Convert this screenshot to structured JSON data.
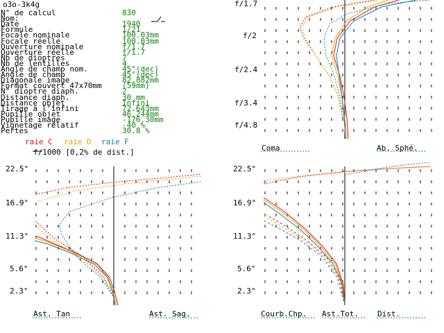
{
  "lens_code": "o3o-3k4g",
  "params": [
    {
      "label": "N° de calcul",
      "value": "830"
    },
    {
      "label": "Nom:",
      "value": ""
    },
    {
      "label": "Date",
      "value": "1940"
    },
    {
      "label": "Formule",
      "value": "1/21"
    },
    {
      "label": "Focale nominale",
      "value": "100.03mm"
    },
    {
      "label": "Focale réelle",
      "value": "100.03mm"
    },
    {
      "label": "Ouverture nominale",
      "value": "f/1.7"
    },
    {
      "label": "Ouverture réelle",
      "value": "f/1.7"
    },
    {
      "label": "Nb de dioptres",
      "value": "7"
    },
    {
      "label": "Nb de lentilles",
      "value": "4"
    },
    {
      "label": "Angle de champ nom.",
      "value": "45°(dec)"
    },
    {
      "label": "Angle de champ",
      "value": "45°(dec)"
    },
    {
      "label": "Diagonale image",
      "value": "82.882mm"
    },
    {
      "label": "Format couvert 47x70mm",
      "value": "(59mm)"
    },
    {
      "label": "N° dioptre diaph.",
      "value": "2"
    },
    {
      "label": "Distance diaph.",
      "value": "30     mm"
    },
    {
      "label": "Distance objet",
      "value": "Infini"
    },
    {
      "label": "Tirage à l'infini",
      "value": "72.643mm"
    },
    {
      "label": "Pupille objet",
      "value": "46.244mm"
    },
    {
      "label": "Pupille image",
      "value": "-176.30mm"
    },
    {
      "label": "Vignetage relatif",
      "value": "-40 %"
    },
    {
      "label": "Pertes",
      "value": "30.8 %"
    }
  ],
  "legend": {
    "raie_c": "raie C",
    "raie_d": "raie D",
    "raie_f": "raie F",
    "scale": "f/1000 [0,2% de dist.]"
  },
  "colors": {
    "c": "#e01010",
    "d": "#f0a000",
    "f": "#1080a0",
    "text_value": "#108010"
  },
  "coma_plot": {
    "y_labels": [
      "f/1.7",
      "f/2",
      "f/2.4",
      "f/3.4",
      "f/4.8"
    ],
    "bottom_left": "Coma",
    "bottom_right": "Ab. Sphé."
  },
  "ast_plot": {
    "y_labels": [
      "22.5°",
      "16.9°",
      "11.3°",
      "5.6°",
      "2.3°"
    ],
    "bottom_left": "Ast. Tan",
    "bottom_right": "Ast. Sag."
  },
  "curv_plot": {
    "y_labels": [
      "22.5°",
      "16.9°",
      "11.3°",
      "5.6°",
      "2.3°"
    ],
    "bottom_a": "Courb.Chp.",
    "bottom_b": "Ast.Tot.",
    "bottom_c": "Dist."
  },
  "chart_data": [
    {
      "type": "line",
      "title": "",
      "xlabel": "Ab. Sphé.",
      "ylabel": "",
      "y_ticks": [
        "f/1.7",
        "f/2",
        "f/2.4",
        "f/3.4",
        "f/4.8"
      ],
      "series": [
        {
          "name": "raie C"
        },
        {
          "name": "raie D"
        },
        {
          "name": "raie F"
        }
      ]
    },
    {
      "type": "line",
      "title": "",
      "xlabel": "Ast. Sag.",
      "ylabel": "",
      "y_ticks": [
        "22.5°",
        "16.9°",
        "11.3°",
        "5.6°",
        "2.3°"
      ],
      "series": [
        {
          "name": "raie C"
        },
        {
          "name": "raie D"
        },
        {
          "name": "raie F"
        }
      ]
    },
    {
      "type": "line",
      "title": "",
      "xlabel": "Dist.",
      "ylabel": "",
      "y_ticks": [
        "22.5°",
        "16.9°",
        "11.3°",
        "5.6°",
        "2.3°"
      ],
      "series": [
        {
          "name": "raie C"
        },
        {
          "name": "raie D"
        },
        {
          "name": "raie F"
        }
      ]
    }
  ]
}
